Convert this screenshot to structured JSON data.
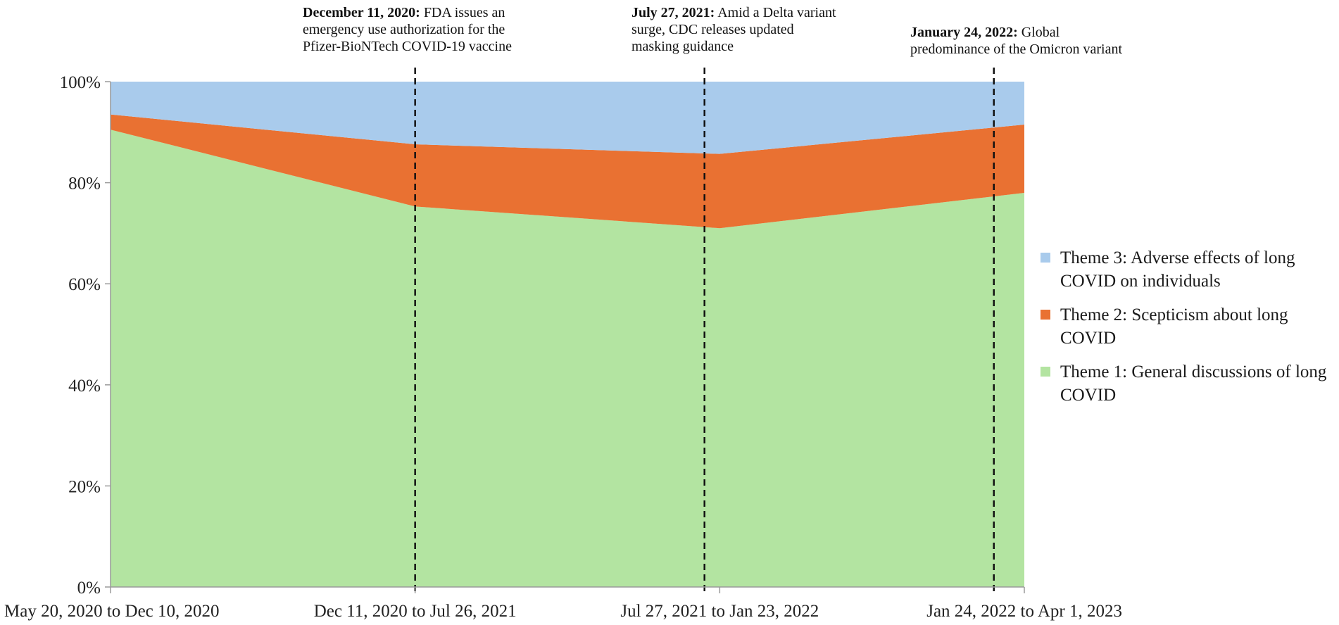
{
  "chart_data": {
    "type": "area",
    "stacked": true,
    "normalized": true,
    "categories": [
      "May 20, 2020 to Dec 10, 2020",
      "Dec 11, 2020 to Jul 26, 2021",
      "Jul 27, 2021 to Jan 23, 2022",
      "Jan 24, 2022 to Apr 1, 2023"
    ],
    "series": [
      {
        "name": "Theme 1: General discussions of long COVID",
        "color": "#b3e4a1",
        "values": [
          90.5,
          75.3,
          71.0,
          78.0
        ]
      },
      {
        "name": "Theme 2: Scepticism about long COVID",
        "color": "#e97132",
        "values": [
          3.0,
          12.3,
          14.7,
          13.5
        ]
      },
      {
        "name": "Theme 3: Adverse effects of long COVID on individuals",
        "color": "#a9cbec",
        "values": [
          6.5,
          12.4,
          14.3,
          8.5
        ]
      }
    ],
    "ylim": [
      0,
      100
    ],
    "yticks": [
      "0%",
      "20%",
      "40%",
      "60%",
      "80%",
      "100%"
    ],
    "ytick_values": [
      0,
      20,
      40,
      60,
      80,
      100
    ],
    "legend_position": "right",
    "annotations": [
      {
        "x_position": 1.0,
        "date": "December 11, 2020:",
        "lines": [
          "FDA issues an",
          "emergency use authorization for the",
          "Pfizer-BioNTech COVID-19 vaccine"
        ]
      },
      {
        "x_position": 1.95,
        "date": "July 27, 2021:",
        "lines": [
          "Amid a Delta variant",
          "surge, CDC releases updated",
          "masking guidance"
        ]
      },
      {
        "x_position": 2.9,
        "date": "January 24, 2022:",
        "lines": [
          "Global",
          "predominance of the Omicron variant"
        ]
      }
    ]
  },
  "legend": [
    {
      "label": "Theme 3: Adverse effects of long COVID on individuals",
      "color": "#a9cbec"
    },
    {
      "label": "Theme 2: Scepticism about long COVID",
      "color": "#e97132"
    },
    {
      "label": "Theme 1: General discussions of long COVID",
      "color": "#b3e4a1"
    }
  ]
}
